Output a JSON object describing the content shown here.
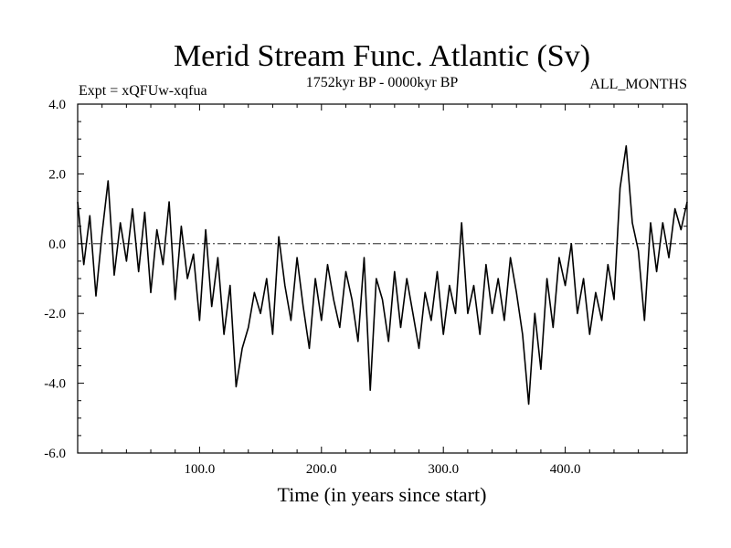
{
  "chart_data": {
    "type": "line",
    "title": "Merid Stream Func. Atlantic (Sv)",
    "subtitle_left": "Expt = xQFUw-xqfua",
    "subtitle_center": "1752kyr BP - 0000kyr BP",
    "subtitle_right": "ALL_MONTHS",
    "xlabel": "Time (in years since start)",
    "ylabel": "",
    "xlim": [
      0,
      500
    ],
    "ylim": [
      -6.0,
      4.0
    ],
    "x_ticks": [
      100,
      200,
      300,
      400
    ],
    "x_tick_labels": [
      "100.0",
      "200.0",
      "300.0",
      "400.0"
    ],
    "y_ticks": [
      -6,
      -4,
      -2,
      0,
      2,
      4
    ],
    "y_tick_labels": [
      "-6.0",
      "-4.0",
      "-2.0",
      "0.0",
      "2.0",
      "4.0"
    ],
    "reference_line": {
      "y": 0.0,
      "style": "dashed"
    },
    "series": [
      {
        "name": "Merid Stream Func. Atlantic",
        "x": [
          0,
          5,
          10,
          15,
          20,
          25,
          30,
          35,
          40,
          45,
          50,
          55,
          60,
          65,
          70,
          75,
          80,
          85,
          90,
          95,
          100,
          105,
          110,
          115,
          120,
          125,
          130,
          135,
          140,
          145,
          150,
          155,
          160,
          165,
          170,
          175,
          180,
          185,
          190,
          195,
          200,
          205,
          210,
          215,
          220,
          225,
          230,
          235,
          240,
          245,
          250,
          255,
          260,
          265,
          270,
          275,
          280,
          285,
          290,
          295,
          300,
          305,
          310,
          315,
          320,
          325,
          330,
          335,
          340,
          345,
          350,
          355,
          360,
          365,
          370,
          375,
          380,
          385,
          390,
          395,
          400,
          405,
          410,
          415,
          420,
          425,
          430,
          435,
          440,
          445,
          450,
          455,
          460,
          465,
          470,
          475,
          480,
          485,
          490,
          495,
          500
        ],
        "y": [
          1.2,
          -0.6,
          0.8,
          -1.5,
          0.3,
          1.8,
          -0.9,
          0.6,
          -0.5,
          1.0,
          -0.8,
          0.9,
          -1.4,
          0.4,
          -0.6,
          1.2,
          -1.6,
          0.5,
          -1.0,
          -0.3,
          -2.2,
          0.4,
          -1.8,
          -0.4,
          -2.6,
          -1.2,
          -4.1,
          -3.0,
          -2.4,
          -1.4,
          -2.0,
          -1.0,
          -2.6,
          0.2,
          -1.2,
          -2.2,
          -0.4,
          -1.8,
          -3.0,
          -1.0,
          -2.2,
          -0.6,
          -1.6,
          -2.4,
          -0.8,
          -1.6,
          -2.8,
          -0.4,
          -4.2,
          -1.0,
          -1.6,
          -2.8,
          -0.8,
          -2.4,
          -1.0,
          -2.0,
          -3.0,
          -1.4,
          -2.2,
          -0.8,
          -2.6,
          -1.2,
          -2.0,
          0.6,
          -2.0,
          -1.2,
          -2.6,
          -0.6,
          -2.0,
          -1.0,
          -2.2,
          -0.4,
          -1.4,
          -2.6,
          -4.6,
          -2.0,
          -3.6,
          -1.0,
          -2.4,
          -0.4,
          -1.2,
          0.0,
          -2.0,
          -1.0,
          -2.6,
          -1.4,
          -2.2,
          -0.6,
          -1.6,
          1.6,
          2.8,
          0.6,
          -0.2,
          -2.2,
          0.6,
          -0.8,
          0.6,
          -0.4,
          1.0,
          0.4,
          1.2
        ]
      }
    ]
  }
}
